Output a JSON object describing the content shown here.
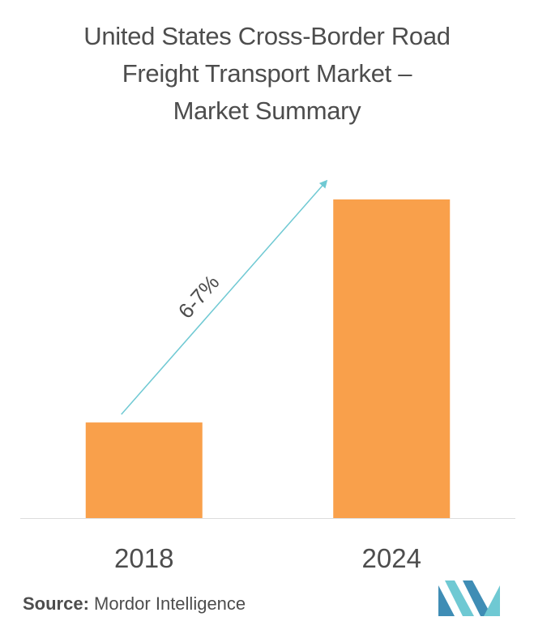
{
  "title_lines": [
    "United States Cross-Border Road",
    "Freight Transport Market –",
    "Market Summary"
  ],
  "chart_data": {
    "type": "bar",
    "categories": [
      "2018",
      "2024"
    ],
    "values": [
      30,
      100
    ],
    "title": "United States Cross-Border Road Freight Transport Market – Market Summary",
    "xlabel": "",
    "ylabel": "",
    "ylim": [
      0,
      100
    ],
    "grid": false,
    "legend": "none",
    "annotation": {
      "text": "6-7%",
      "type": "growth-arrow"
    },
    "colors": {
      "bar": "#f9a04b",
      "arrow": "#6fc9d3",
      "axis": "#dddddd",
      "text": "#4d4d4d"
    }
  },
  "footer": {
    "source_label": "Source:",
    "source_name": "Mordor Intelligence"
  },
  "logo": {
    "icon": "mordor-intelligence-logo",
    "colors": [
      "#3f8db5",
      "#6fc9d3"
    ]
  }
}
